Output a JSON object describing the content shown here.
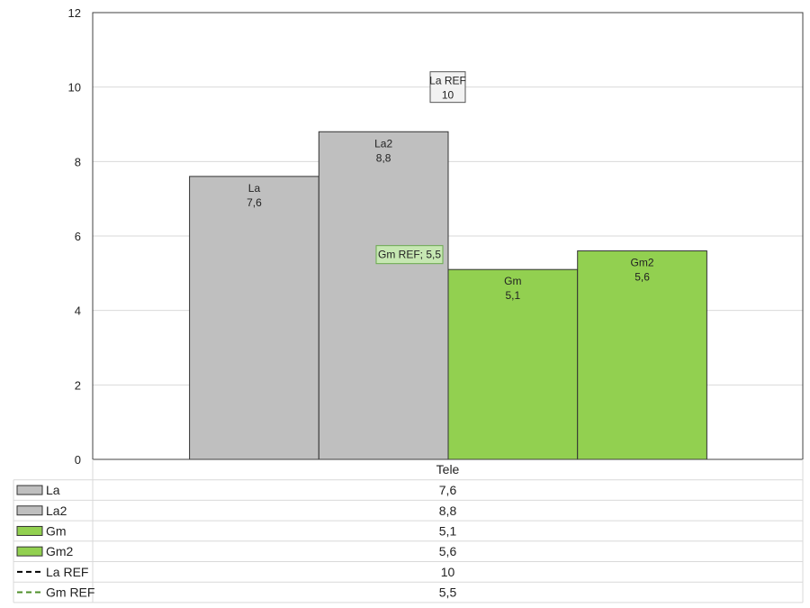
{
  "chart_data": {
    "type": "bar",
    "categories": [
      "Tele"
    ],
    "series": [
      {
        "name": "La",
        "values": [
          7.6
        ],
        "color": "#bfbfbf",
        "label": "7,6"
      },
      {
        "name": "La2",
        "values": [
          8.8
        ],
        "color": "#bfbfbf",
        "label": "8,8"
      },
      {
        "name": "Gm",
        "values": [
          5.1
        ],
        "color": "#92d050",
        "label": "5,1"
      },
      {
        "name": "Gm2",
        "values": [
          5.6
        ],
        "color": "#92d050",
        "label": "5,6"
      }
    ],
    "references": [
      {
        "name": "La REF",
        "value": 10,
        "label": "10",
        "line_style": "dashed",
        "color": "#000000",
        "annotation": [
          "La REF",
          "10"
        ],
        "annotation_bg": "#f2f2f2"
      },
      {
        "name": "Gm REF",
        "value": 5.5,
        "label": "5,5",
        "line_style": "dashed",
        "color": "#4e8f2a",
        "annotation": [
          "Gm REF; 5,5"
        ],
        "annotation_bg": "#c6e7b2"
      }
    ],
    "ylim": [
      0,
      12
    ],
    "yticks": [
      "0",
      "2",
      "4",
      "6",
      "8",
      "10",
      "12"
    ],
    "grid": true,
    "legend": "data-table"
  }
}
